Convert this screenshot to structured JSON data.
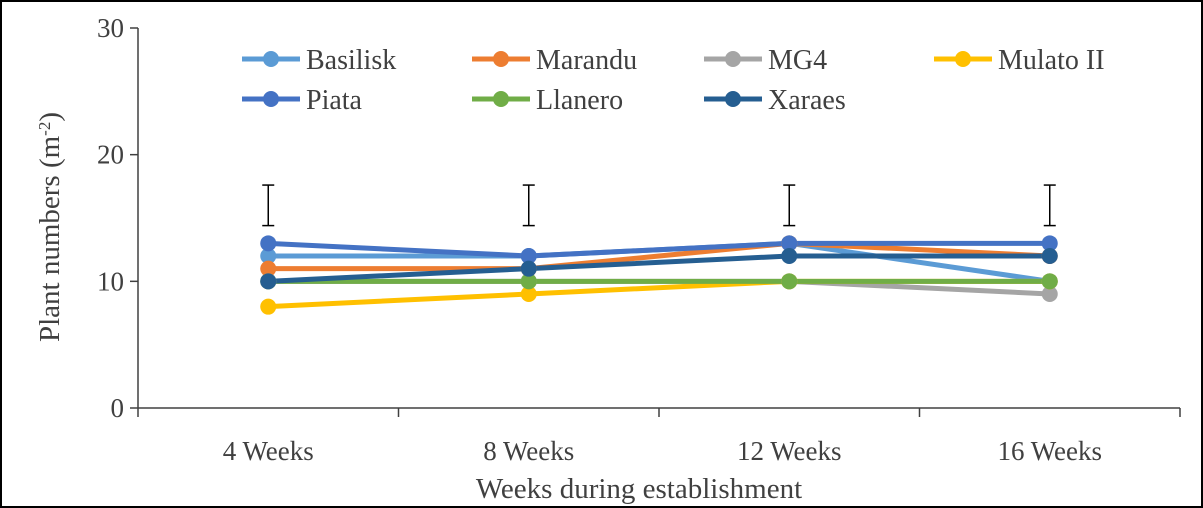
{
  "chart_data": {
    "type": "line",
    "categories": [
      "4 Weeks",
      "8 Weeks",
      "12 Weeks",
      "16 Weeks"
    ],
    "xlabel": "Weeks during establishment",
    "ylabel_main": "Plant numbers (m",
    "ylabel_sup": "-2",
    "ylabel_close": ")",
    "ylim": [
      0,
      30
    ],
    "yticks": [
      "0",
      "10",
      "20",
      "30"
    ],
    "ytick_values": [
      0,
      10,
      20,
      30
    ],
    "grid": false,
    "legend_position": "top",
    "error_bars": {
      "center": 16,
      "half_width": 1.6
    },
    "series": [
      {
        "name": "Basilisk",
        "color": "#5b9bd5",
        "values": [
          12,
          12,
          13,
          10
        ]
      },
      {
        "name": "Marandu",
        "color": "#ed7d31",
        "values": [
          11,
          11,
          13,
          12
        ]
      },
      {
        "name": "MG4",
        "color": "#a5a5a5",
        "values": [
          10,
          10,
          10,
          9
        ]
      },
      {
        "name": "Mulato II",
        "color": "#ffc000",
        "values": [
          8,
          9,
          10,
          10
        ]
      },
      {
        "name": "Piata",
        "color": "#4472c4",
        "values": [
          13,
          12,
          13,
          13
        ]
      },
      {
        "name": "Llanero",
        "color": "#70ad47",
        "values": [
          10,
          10,
          10,
          10
        ]
      },
      {
        "name": "Xaraes",
        "color": "#255e91",
        "values": [
          10,
          11,
          12,
          12
        ]
      }
    ]
  }
}
